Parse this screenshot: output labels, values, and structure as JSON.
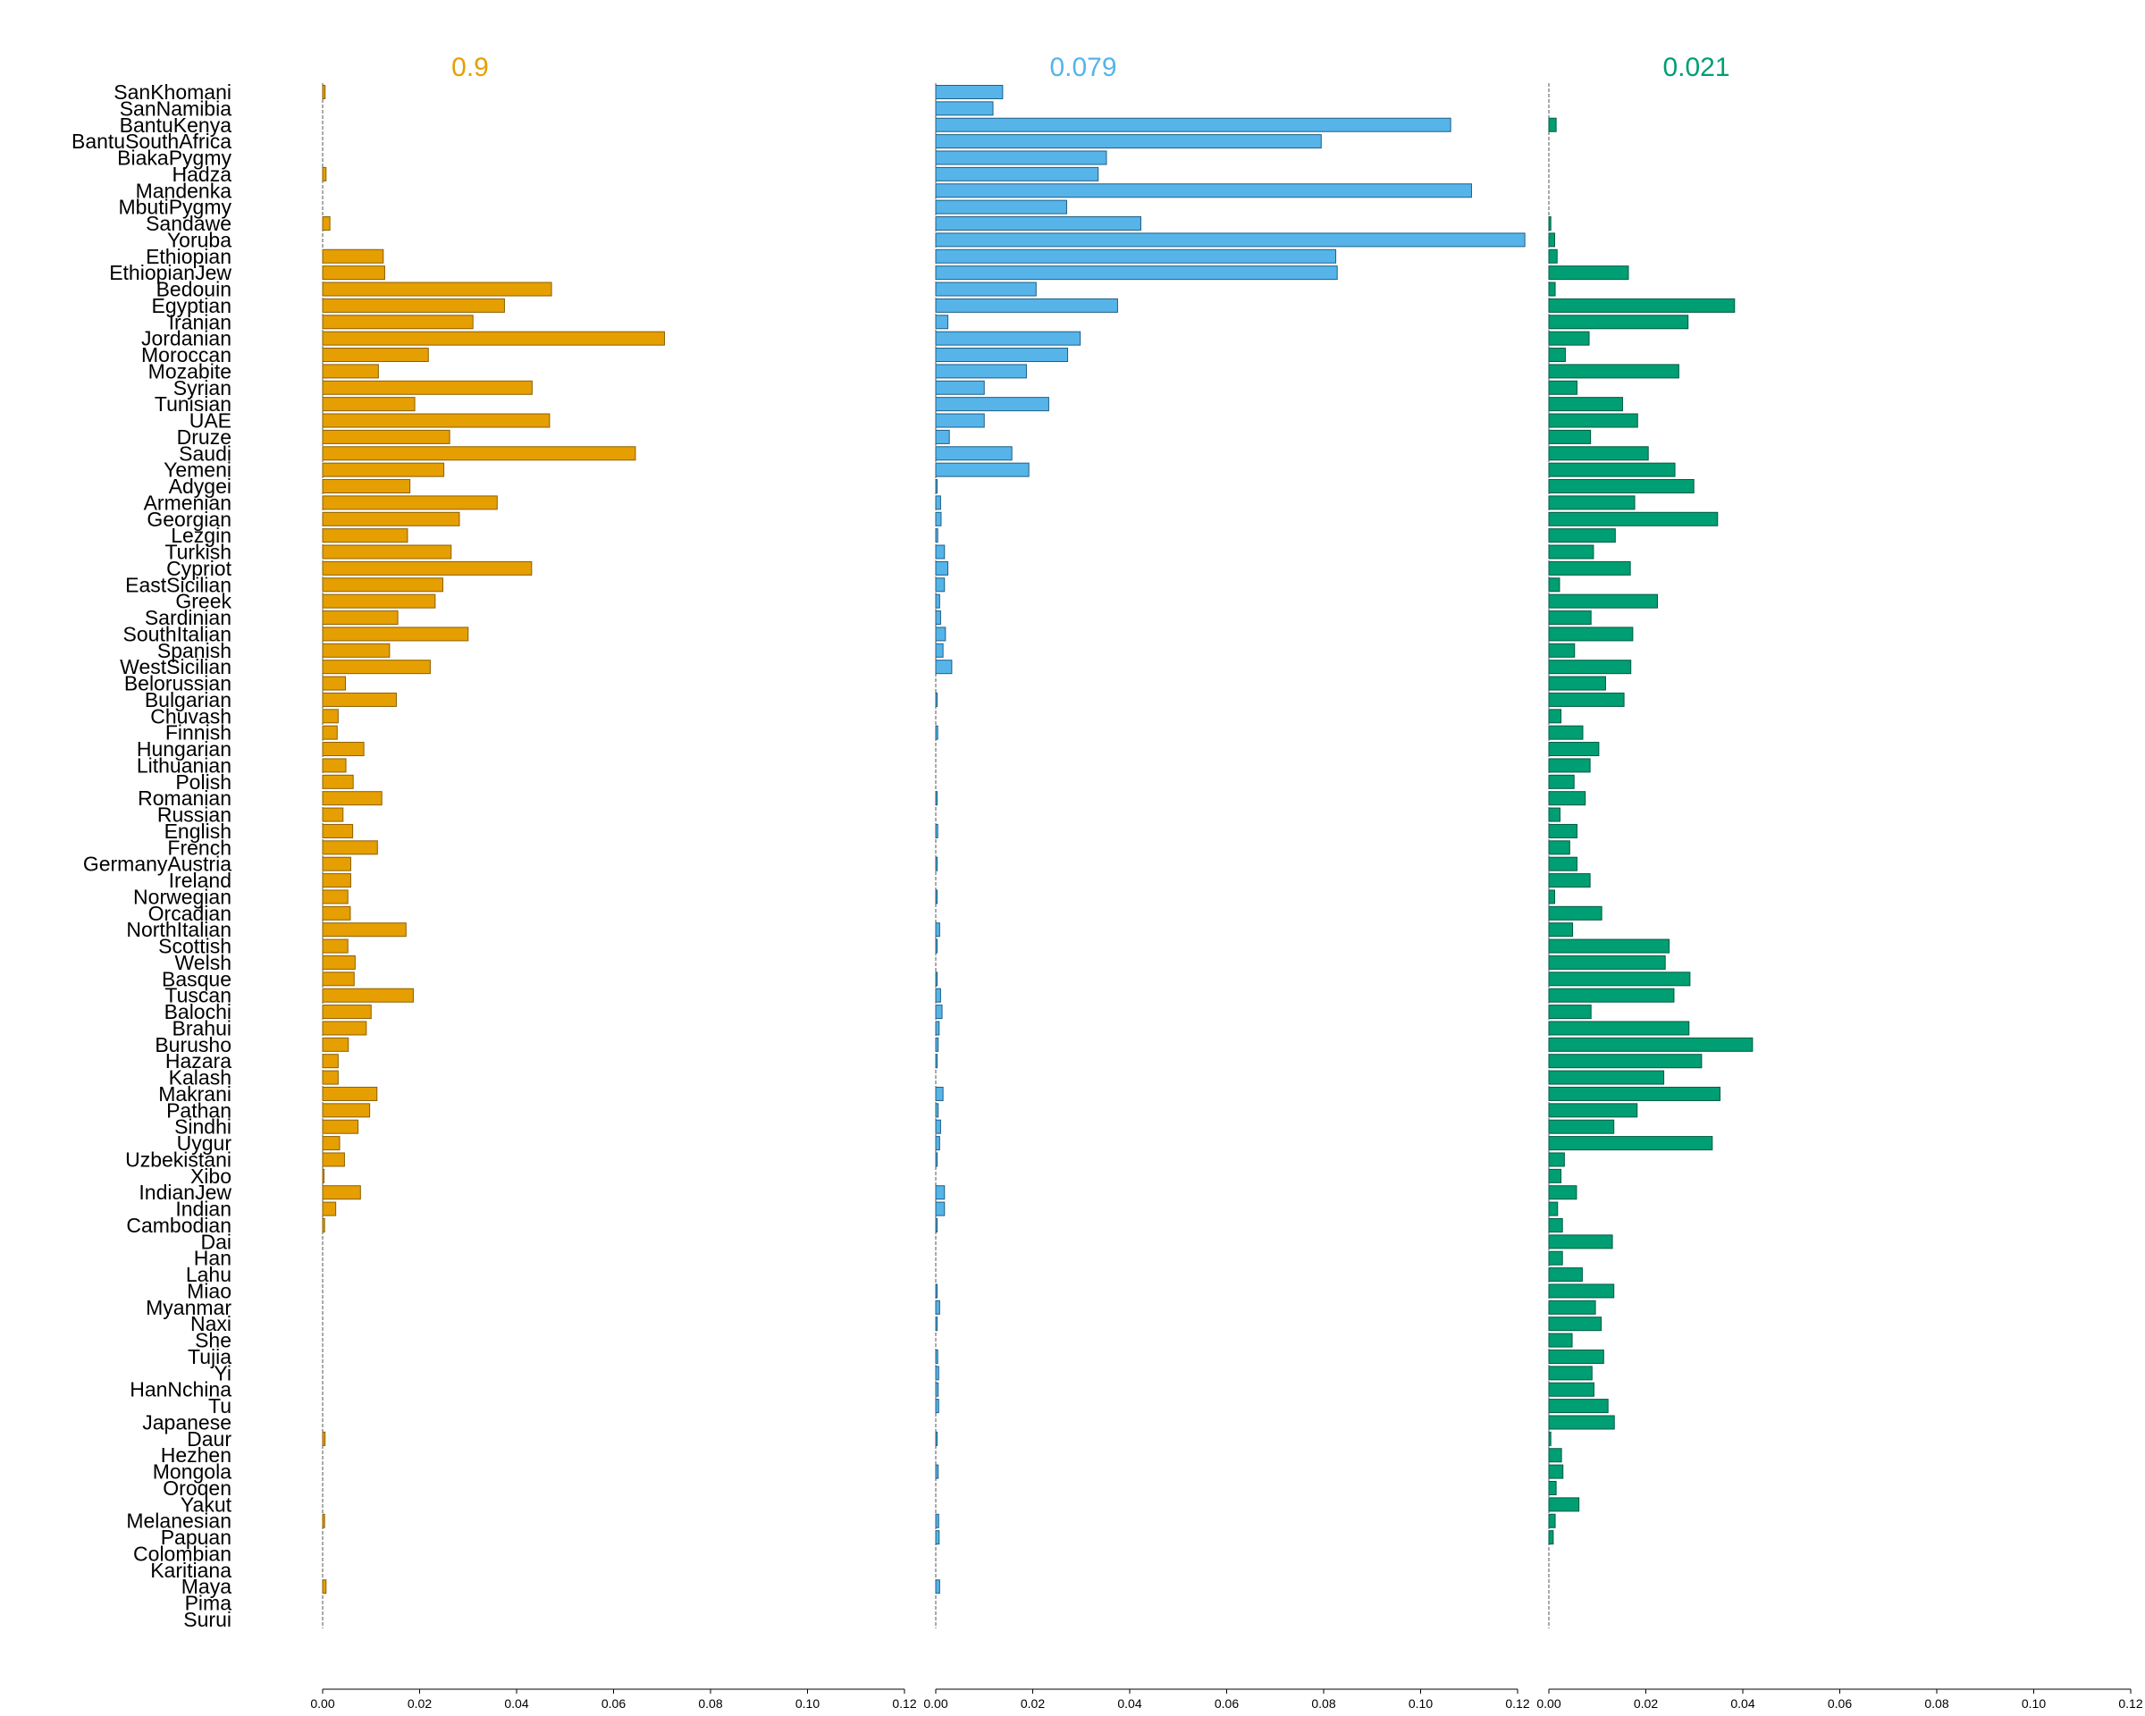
{
  "chart_data": {
    "type": "bar",
    "orientation": "horizontal",
    "categories": [
      "SanKhomani",
      "SanNamibia",
      "BantuKenya",
      "BantuSouthAfrica",
      "BiakaPygmy",
      "Hadza",
      "Mandenka",
      "MbutiPygmy",
      "Sandawe",
      "Yoruba",
      "Ethiopian",
      "EthiopianJew",
      "Bedouin",
      "Egyptian",
      "Iranian",
      "Jordanian",
      "Moroccan",
      "Mozabite",
      "Syrian",
      "Tunisian",
      "UAE",
      "Druze",
      "Saudi",
      "Yemeni",
      "Adygei",
      "Armenian",
      "Georgian",
      "Lezgin",
      "Turkish",
      "Cypriot",
      "EastSicilian",
      "Greek",
      "Sardinian",
      "SouthItalian",
      "Spanish",
      "WestSicilian",
      "Belorussian",
      "Bulgarian",
      "Chuvash",
      "Finnish",
      "Hungarian",
      "Lithuanian",
      "Polish",
      "Romanian",
      "Russian",
      "English",
      "French",
      "GermanyAustria",
      "Ireland",
      "Norwegian",
      "Orcadian",
      "NorthItalian",
      "Scottish",
      "Welsh",
      "Basque",
      "Tuscan",
      "Balochi",
      "Brahui",
      "Burusho",
      "Hazara",
      "Kalash",
      "Makrani",
      "Pathan",
      "Sindhi",
      "Uygur",
      "Uzbekistani",
      "Xibo",
      "IndianJew",
      "Indian",
      "Cambodian",
      "Dai",
      "Han",
      "Lahu",
      "Miao",
      "Myanmar",
      "Naxi",
      "She",
      "Tujia",
      "Yi",
      "HanNchina",
      "Tu",
      "Japanese",
      "Daur",
      "Hezhen",
      "Mongola",
      "Oroqen",
      "Yakut",
      "Melanesian",
      "Papuan",
      "Colombian",
      "Karitiana",
      "Maya",
      "Pima",
      "Surui"
    ],
    "series": [
      {
        "name": "0.9",
        "color": "#E69F00",
        "values": [
          0.0005,
          0,
          0,
          0,
          0,
          0.0007,
          0,
          0,
          0.0015,
          0,
          0.0125,
          0.0128,
          0.0472,
          0.0375,
          0.031,
          0.0705,
          0.0218,
          0.0115,
          0.0432,
          0.019,
          0.0468,
          0.0262,
          0.0645,
          0.025,
          0.018,
          0.036,
          0.0282,
          0.0175,
          0.0265,
          0.0431,
          0.0248,
          0.0232,
          0.0155,
          0.03,
          0.0138,
          0.0222,
          0.0047,
          0.0152,
          0.0032,
          0.003,
          0.0085,
          0.0048,
          0.0063,
          0.0122,
          0.0042,
          0.0062,
          0.0113,
          0.0058,
          0.0058,
          0.0052,
          0.0057,
          0.0172,
          0.0052,
          0.0067,
          0.0065,
          0.0187,
          0.01,
          0.009,
          0.0053,
          0.0032,
          0.0032,
          0.0112,
          0.0097,
          0.0073,
          0.0035,
          0.0045,
          0.0002,
          0.0078,
          0.0027,
          0.0004,
          0,
          0,
          0,
          0,
          0,
          0,
          0,
          0,
          0,
          0,
          0,
          0,
          0.0005,
          0,
          0,
          0,
          0,
          0.0004,
          0,
          0,
          0,
          0.0007,
          0,
          0
        ]
      },
      {
        "name": "0.079",
        "color": "#56B4E9",
        "values": [
          0.0138,
          0.0118,
          0.1062,
          0.0795,
          0.0352,
          0.0335,
          0.1105,
          0.027,
          0.0423,
          0.1215,
          0.0825,
          0.0828,
          0.0207,
          0.0375,
          0.0025,
          0.0298,
          0.0272,
          0.0187,
          0.01,
          0.0233,
          0.01,
          0.0028,
          0.0157,
          0.0192,
          0.0002,
          0.001,
          0.0011,
          0.0004,
          0.0018,
          0.0025,
          0.0018,
          0.0008,
          0.001,
          0.002,
          0.0015,
          0.0033,
          0,
          0.0003,
          0,
          0.0004,
          0,
          0,
          0,
          0.0002,
          0,
          0.0004,
          0,
          0.0003,
          0,
          0.0002,
          0,
          0.0008,
          0.0002,
          0,
          0.0002,
          0.001,
          0.0013,
          0.0007,
          0.0005,
          0.0003,
          0,
          0.0015,
          0.0005,
          0.001,
          0.0008,
          0.0003,
          0,
          0.0018,
          0.0018,
          0.0002,
          0,
          0,
          0,
          0.0002,
          0.0008,
          0.0003,
          0,
          0.0004,
          0.0006,
          0.0005,
          0.0006,
          0,
          0.0002,
          0,
          0.0005,
          0,
          0,
          0.0006,
          0.0007,
          0,
          0,
          0.0008,
          0,
          0
        ]
      },
      {
        "name": "0.021",
        "color": "#009E73",
        "values": [
          0,
          0,
          0.0015,
          0,
          0,
          0,
          0,
          0,
          0.0004,
          0.0012,
          0.0017,
          0.0164,
          0.0013,
          0.0383,
          0.0287,
          0.0083,
          0.0034,
          0.0268,
          0.0058,
          0.0152,
          0.0183,
          0.0086,
          0.0205,
          0.026,
          0.0299,
          0.0177,
          0.0348,
          0.0137,
          0.0092,
          0.0168,
          0.0022,
          0.0224,
          0.0087,
          0.0173,
          0.0053,
          0.0169,
          0.0117,
          0.0155,
          0.0025,
          0.007,
          0.0103,
          0.0085,
          0.0052,
          0.0075,
          0.0023,
          0.0058,
          0.0043,
          0.0058,
          0.0085,
          0.0012,
          0.0109,
          0.0049,
          0.0248,
          0.024,
          0.0291,
          0.0258,
          0.0087,
          0.0289,
          0.042,
          0.0315,
          0.0237,
          0.0353,
          0.0182,
          0.0134,
          0.0337,
          0.0032,
          0.0025,
          0.0057,
          0.0018,
          0.0028,
          0.0131,
          0.0028,
          0.0069,
          0.0134,
          0.0096,
          0.0108,
          0.0048,
          0.0113,
          0.0089,
          0.0093,
          0.0122,
          0.0135,
          0.0004,
          0.0026,
          0.0029,
          0.0015,
          0.0062,
          0.0013,
          0.0009,
          0,
          0,
          0,
          0,
          0
        ]
      }
    ],
    "xlim": [
      0,
      0.12
    ],
    "xticks": [
      "0.00",
      "0.02",
      "0.04",
      "0.06",
      "0.08",
      "0.10",
      "0.12"
    ],
    "title": "",
    "xlabel": "",
    "ylabel": "",
    "grid": false
  }
}
